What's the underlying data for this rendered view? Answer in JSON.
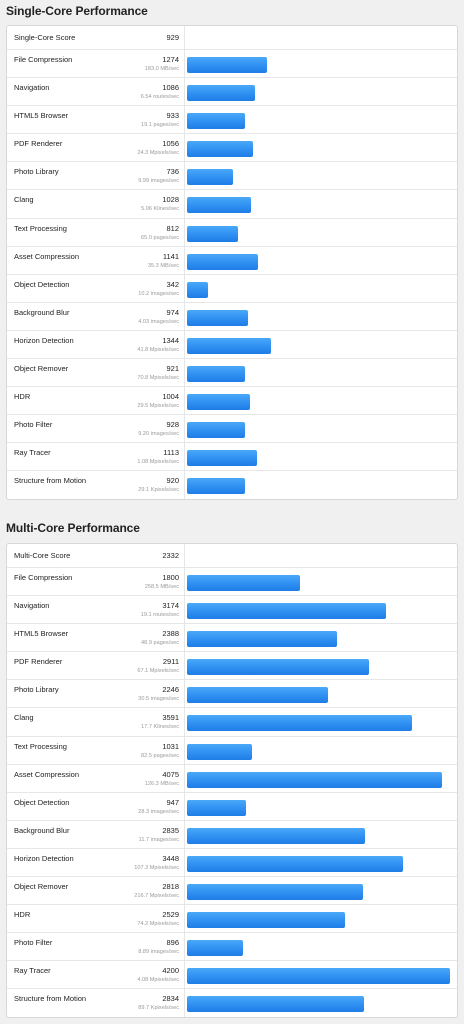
{
  "single": {
    "title": "Single-Core Performance",
    "score_label": "Single-Core Score",
    "score_value": "929",
    "workloads": [
      {
        "name": "File Compression",
        "score": "1274",
        "detail": "183.0 MB/sec",
        "value": 1274
      },
      {
        "name": "Navigation",
        "score": "1086",
        "detail": "6.54 routes/sec",
        "value": 1086
      },
      {
        "name": "HTML5 Browser",
        "score": "933",
        "detail": "19.1 pages/sec",
        "value": 933
      },
      {
        "name": "PDF Renderer",
        "score": "1056",
        "detail": "24.3 Mpixels/sec",
        "value": 1056
      },
      {
        "name": "Photo Library",
        "score": "736",
        "detail": "9.99 images/sec",
        "value": 736
      },
      {
        "name": "Clang",
        "score": "1028",
        "detail": "5.06 Klines/sec",
        "value": 1028
      },
      {
        "name": "Text Processing",
        "score": "812",
        "detail": "65.0 pages/sec",
        "value": 812
      },
      {
        "name": "Asset Compression",
        "score": "1141",
        "detail": "35.3 MB/sec",
        "value": 1141
      },
      {
        "name": "Object Detection",
        "score": "342",
        "detail": "10.2 images/sec",
        "value": 342
      },
      {
        "name": "Background Blur",
        "score": "974",
        "detail": "4.03 images/sec",
        "value": 974
      },
      {
        "name": "Horizon Detection",
        "score": "1344",
        "detail": "41.8 Mpixels/sec",
        "value": 1344
      },
      {
        "name": "Object Remover",
        "score": "921",
        "detail": "70.8 Mpixels/sec",
        "value": 921
      },
      {
        "name": "HDR",
        "score": "1004",
        "detail": "29.5 Mpixels/sec",
        "value": 1004
      },
      {
        "name": "Photo Filter",
        "score": "928",
        "detail": "9.20 images/sec",
        "value": 928
      },
      {
        "name": "Ray Tracer",
        "score": "1113",
        "detail": "1.08 Mpixels/sec",
        "value": 1113
      },
      {
        "name": "Structure from Motion",
        "score": "920",
        "detail": "29.1 Kpixels/sec",
        "value": 920
      }
    ]
  },
  "multi": {
    "title": "Multi-Core Performance",
    "score_label": "Multi-Core Score",
    "score_value": "2332",
    "workloads": [
      {
        "name": "File Compression",
        "score": "1800",
        "detail": "258.5 MB/sec",
        "value": 1800
      },
      {
        "name": "Navigation",
        "score": "3174",
        "detail": "19.1 routes/sec",
        "value": 3174
      },
      {
        "name": "HTML5 Browser",
        "score": "2388",
        "detail": "48.9 pages/sec",
        "value": 2388
      },
      {
        "name": "PDF Renderer",
        "score": "2911",
        "detail": "67.1 Mpixels/sec",
        "value": 2911
      },
      {
        "name": "Photo Library",
        "score": "2246",
        "detail": "30.5 images/sec",
        "value": 2246
      },
      {
        "name": "Clang",
        "score": "3591",
        "detail": "17.7 Klines/sec",
        "value": 3591
      },
      {
        "name": "Text Processing",
        "score": "1031",
        "detail": "82.5 pages/sec",
        "value": 1031
      },
      {
        "name": "Asset Compression",
        "score": "4075",
        "detail": "126.3 MB/sec",
        "value": 4075
      },
      {
        "name": "Object Detection",
        "score": "947",
        "detail": "28.3 images/sec",
        "value": 947
      },
      {
        "name": "Background Blur",
        "score": "2835",
        "detail": "11.7 images/sec",
        "value": 2835
      },
      {
        "name": "Horizon Detection",
        "score": "3448",
        "detail": "107.3 Mpixels/sec",
        "value": 3448
      },
      {
        "name": "Object Remover",
        "score": "2818",
        "detail": "216.7 Mpixels/sec",
        "value": 2818
      },
      {
        "name": "HDR",
        "score": "2529",
        "detail": "74.2 Mpixels/sec",
        "value": 2529
      },
      {
        "name": "Photo Filter",
        "score": "896",
        "detail": "8.89 images/sec",
        "value": 896
      },
      {
        "name": "Ray Tracer",
        "score": "4200",
        "detail": "4.08 Mpixels/sec",
        "value": 4200
      },
      {
        "name": "Structure from Motion",
        "score": "2834",
        "detail": "89.7 Kpixels/sec",
        "value": 2834
      }
    ]
  },
  "bar_scale_max": 4200,
  "colors": {
    "bar": "#2f8ff1",
    "background": "#f0f0f0",
    "panel": "#ffffff"
  }
}
